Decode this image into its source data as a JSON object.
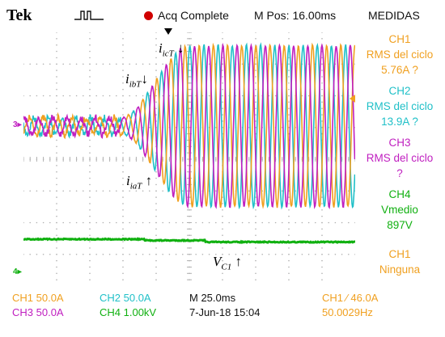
{
  "header": {
    "logo": "Tek",
    "acq_status": "Acq Complete",
    "mpos": "M Pos: 16.00ms",
    "side_title": "MEDIDAS"
  },
  "measurements": [
    {
      "line1": "CH1",
      "line2": "RMS del ciclo",
      "line3": "5.76A ?",
      "color": "#f0a020"
    },
    {
      "line1": "CH2",
      "line2": "RMS del ciclo",
      "line3": "13.9A ?",
      "color": "#20c0c8"
    },
    {
      "line1": "CH3",
      "line2": "RMS del ciclo",
      "line3": "?",
      "color": "#c020c0"
    },
    {
      "line1": "CH4",
      "line2": "Vmedio",
      "line3": "897V",
      "color": "#10b010"
    },
    {
      "line1": "CH1",
      "line2": "Ninguna",
      "line3": "",
      "color": "#f0a020"
    }
  ],
  "footer": {
    "ch1": "CH1   50.0A",
    "ch2": "CH2   50.0A",
    "ch3": "CH3   50.0A",
    "ch4": "CH4   1.00kV",
    "timebase": "M 25.0ms",
    "date": "7-Jun-18 15:04",
    "trigger": "CH1  ∕  46.0A",
    "freq": "50.0029Hz"
  },
  "channel_markers": {
    "ch3": "3",
    "ch4": "4"
  },
  "annotations": {
    "icT_sym": "i",
    "icT_sub": "icT",
    "ibT_sym": "i",
    "ibT_sub": "ibT",
    "iaT_sym": "i",
    "iaT_sub": "iaT",
    "vc1_sym": "V",
    "vc1_sub": "C1",
    "down_arrow": "↓",
    "up_arrow": "↑"
  },
  "colors": {
    "ch1": "#f0a020",
    "ch2": "#20c0c8",
    "ch3": "#c020c0",
    "ch4": "#10b010",
    "grid": "#b0b0b0",
    "acq_dot": "#d00000"
  }
}
